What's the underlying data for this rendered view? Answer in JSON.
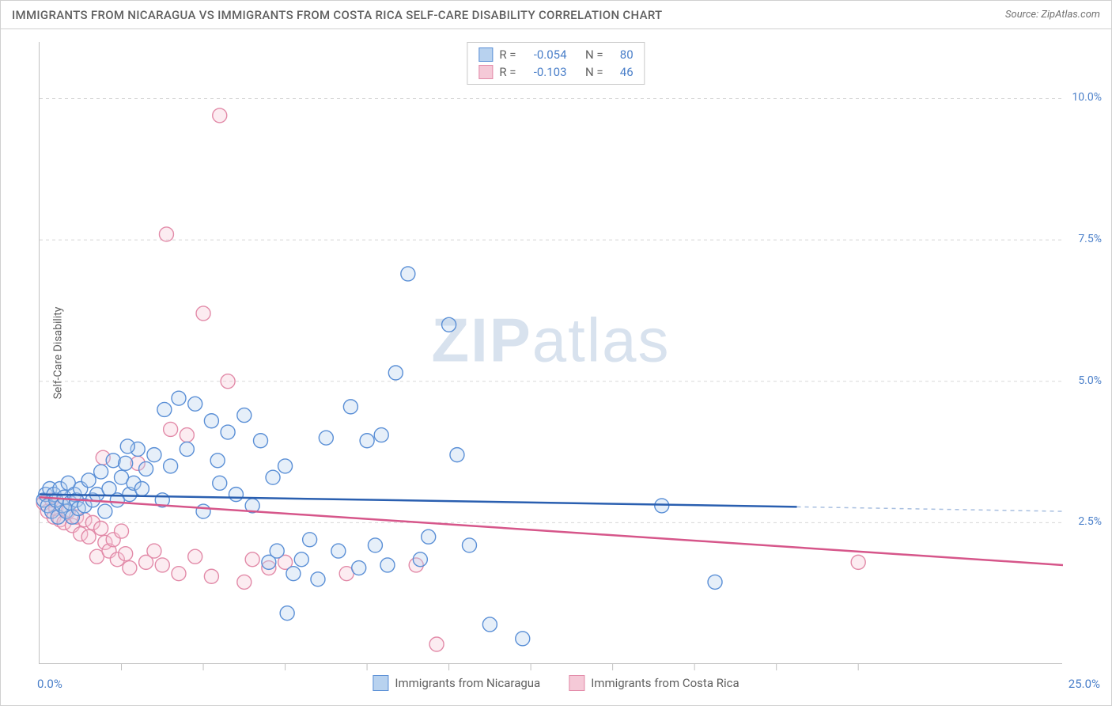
{
  "title": "IMMIGRANTS FROM NICARAGUA VS IMMIGRANTS FROM COSTA RICA SELF-CARE DISABILITY CORRELATION CHART",
  "source": "Source: ZipAtlas.com",
  "ylabel": "Self-Care Disability",
  "watermark_a": "ZIP",
  "watermark_b": "atlas",
  "chart": {
    "type": "scatter",
    "xlim": [
      0,
      25
    ],
    "ylim": [
      0,
      11
    ],
    "x_origin_label": "0.0%",
    "x_max_label": "25.0%",
    "x_ticks": [
      2,
      4,
      6,
      8,
      10,
      12,
      14,
      16,
      18,
      20
    ],
    "y_grid": [
      2.5,
      5.0,
      7.5,
      10.0
    ],
    "y_grid_labels": [
      "2.5%",
      "5.0%",
      "7.5%",
      "10.0%"
    ],
    "background_color": "#ffffff",
    "grid_color": "#d8d8d8",
    "axis_color": "#c0c0c0",
    "label_color": "#4a7fc9",
    "title_color": "#606060",
    "title_fontsize": 15,
    "label_fontsize": 14,
    "marker_radius": 9,
    "marker_fill_opacity": 0.35,
    "marker_stroke_width": 1.4,
    "trend_line_width": 2.5,
    "trend_dash_color": "#a8bfe0"
  },
  "series": [
    {
      "key": "nicaragua",
      "label": "Immigrants from Nicaragua",
      "color": "#6fa3e0",
      "fill": "#b8d2ef",
      "stroke": "#5a8fd6",
      "line_color": "#2a5fb0",
      "R_label": "R =",
      "R": "-0.054",
      "N_label": "N =",
      "N": "80",
      "trend": {
        "x1": 0,
        "y1": 3.0,
        "x2": 18.5,
        "y2": 2.78,
        "dash_to_x": 25,
        "dash_to_y": 2.7
      },
      "points": [
        [
          0.1,
          2.9
        ],
        [
          0.15,
          3.0
        ],
        [
          0.2,
          2.8
        ],
        [
          0.25,
          3.1
        ],
        [
          0.3,
          2.7
        ],
        [
          0.35,
          3.0
        ],
        [
          0.4,
          2.9
        ],
        [
          0.45,
          2.6
        ],
        [
          0.5,
          3.1
        ],
        [
          0.55,
          2.8
        ],
        [
          0.6,
          2.95
        ],
        [
          0.65,
          2.7
        ],
        [
          0.7,
          3.2
        ],
        [
          0.75,
          2.85
        ],
        [
          0.8,
          2.6
        ],
        [
          0.85,
          3.0
        ],
        [
          0.9,
          2.9
        ],
        [
          0.95,
          2.75
        ],
        [
          1.0,
          3.1
        ],
        [
          1.1,
          2.8
        ],
        [
          1.2,
          3.25
        ],
        [
          1.3,
          2.9
        ],
        [
          1.4,
          3.0
        ],
        [
          1.5,
          3.4
        ],
        [
          1.6,
          2.7
        ],
        [
          1.7,
          3.1
        ],
        [
          1.8,
          3.6
        ],
        [
          1.9,
          2.9
        ],
        [
          2.0,
          3.3
        ],
        [
          2.1,
          3.55
        ],
        [
          2.2,
          3.0
        ],
        [
          2.3,
          3.2
        ],
        [
          2.4,
          3.8
        ],
        [
          2.5,
          3.1
        ],
        [
          2.6,
          3.45
        ],
        [
          2.8,
          3.7
        ],
        [
          3.0,
          2.9
        ],
        [
          3.2,
          3.5
        ],
        [
          3.4,
          4.7
        ],
        [
          3.6,
          3.8
        ],
        [
          3.8,
          4.6
        ],
        [
          4.0,
          2.7
        ],
        [
          4.2,
          4.3
        ],
        [
          4.4,
          3.2
        ],
        [
          4.6,
          4.1
        ],
        [
          4.8,
          3.0
        ],
        [
          5.0,
          4.4
        ],
        [
          5.2,
          2.8
        ],
        [
          5.4,
          3.95
        ],
        [
          5.6,
          1.8
        ],
        [
          5.8,
          2.0
        ],
        [
          6.0,
          3.5
        ],
        [
          6.2,
          1.6
        ],
        [
          6.4,
          1.85
        ],
        [
          6.6,
          2.2
        ],
        [
          6.8,
          1.5
        ],
        [
          7.0,
          4.0
        ],
        [
          7.3,
          2.0
        ],
        [
          7.6,
          4.55
        ],
        [
          7.8,
          1.7
        ],
        [
          8.0,
          3.95
        ],
        [
          8.2,
          2.1
        ],
        [
          8.5,
          1.75
        ],
        [
          8.7,
          5.15
        ],
        [
          9.0,
          6.9
        ],
        [
          9.3,
          1.85
        ],
        [
          9.5,
          2.25
        ],
        [
          10.0,
          6.0
        ],
        [
          10.2,
          3.7
        ],
        [
          10.5,
          2.1
        ],
        [
          11.0,
          0.7
        ],
        [
          11.8,
          0.45
        ],
        [
          15.2,
          2.8
        ],
        [
          16.5,
          1.45
        ],
        [
          2.15,
          3.85
        ],
        [
          3.05,
          4.5
        ],
        [
          4.35,
          3.6
        ],
        [
          5.7,
          3.3
        ],
        [
          6.05,
          0.9
        ],
        [
          8.35,
          4.05
        ]
      ]
    },
    {
      "key": "costarica",
      "label": "Immigrants from Costa Rica",
      "color": "#e89ab4",
      "fill": "#f5c9d7",
      "stroke": "#e28aa8",
      "line_color": "#d6568a",
      "R_label": "R =",
      "R": "-0.103",
      "N_label": "N =",
      "N": "46",
      "trend": {
        "x1": 0,
        "y1": 2.95,
        "x2": 25,
        "y2": 1.75
      },
      "points": [
        [
          0.1,
          2.85
        ],
        [
          0.2,
          2.7
        ],
        [
          0.3,
          2.9
        ],
        [
          0.35,
          2.6
        ],
        [
          0.4,
          2.75
        ],
        [
          0.5,
          2.55
        ],
        [
          0.55,
          2.8
        ],
        [
          0.6,
          2.5
        ],
        [
          0.7,
          2.7
        ],
        [
          0.8,
          2.45
        ],
        [
          0.9,
          2.6
        ],
        [
          1.0,
          2.3
        ],
        [
          1.1,
          2.55
        ],
        [
          1.2,
          2.25
        ],
        [
          1.3,
          2.5
        ],
        [
          1.4,
          1.9
        ],
        [
          1.5,
          2.4
        ],
        [
          1.6,
          2.15
        ],
        [
          1.7,
          2.0
        ],
        [
          1.8,
          2.2
        ],
        [
          1.9,
          1.85
        ],
        [
          2.0,
          2.35
        ],
        [
          2.1,
          1.95
        ],
        [
          2.2,
          1.7
        ],
        [
          2.4,
          3.55
        ],
        [
          2.6,
          1.8
        ],
        [
          2.8,
          2.0
        ],
        [
          3.0,
          1.75
        ],
        [
          3.2,
          4.15
        ],
        [
          3.4,
          1.6
        ],
        [
          3.6,
          4.05
        ],
        [
          3.8,
          1.9
        ],
        [
          4.0,
          6.2
        ],
        [
          4.2,
          1.55
        ],
        [
          4.4,
          9.7
        ],
        [
          4.6,
          5.0
        ],
        [
          5.0,
          1.45
        ],
        [
          5.2,
          1.85
        ],
        [
          5.6,
          1.7
        ],
        [
          6.0,
          1.8
        ],
        [
          7.5,
          1.6
        ],
        [
          9.2,
          1.75
        ],
        [
          9.7,
          0.35
        ],
        [
          20.0,
          1.8
        ],
        [
          3.1,
          7.6
        ],
        [
          1.55,
          3.65
        ]
      ]
    }
  ],
  "legend": {
    "series1_label": "Immigrants from Nicaragua",
    "series2_label": "Immigrants from Costa Rica"
  }
}
